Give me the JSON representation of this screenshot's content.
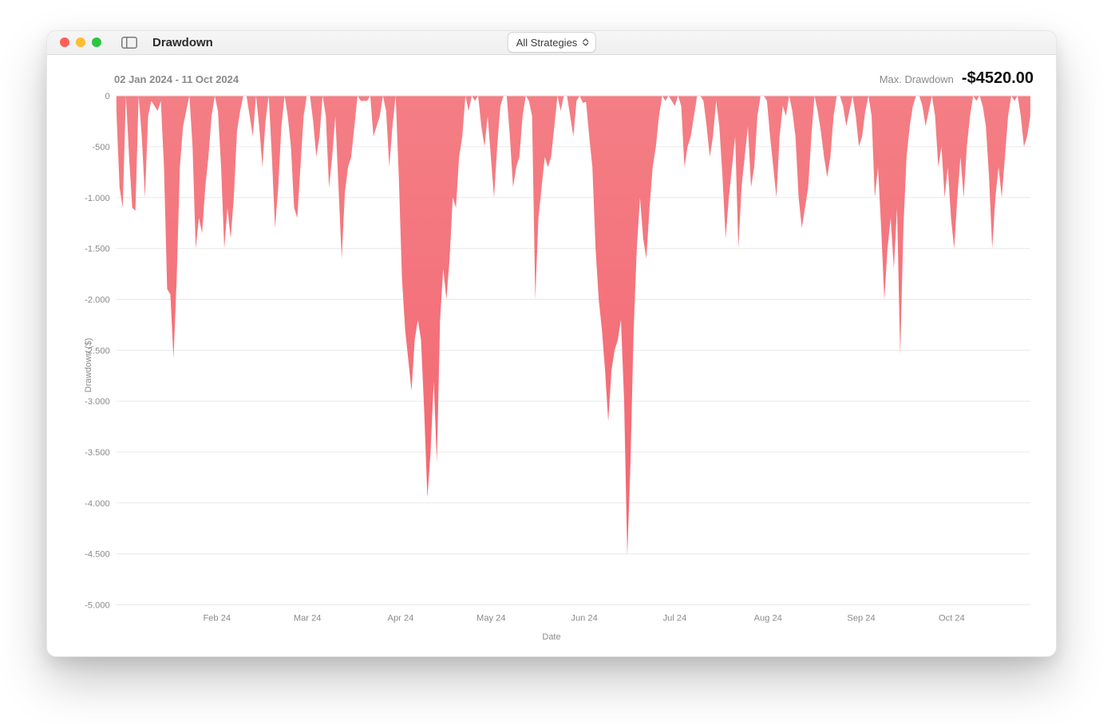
{
  "window": {
    "title": "Drawdown",
    "dropdown_label": "All Strategies",
    "traffic_colors": {
      "close": "#ff5f57",
      "min": "#febc2e",
      "max": "#28c840"
    }
  },
  "header": {
    "date_range": "02 Jan 2024 - 11 Oct 2024",
    "maxdd_label": "Max. Drawdown",
    "maxdd_value": "-$4520.00"
  },
  "chart": {
    "type": "area",
    "ylabel": "Drawdown ($)",
    "xlabel": "Date",
    "ylim": [
      -5000,
      0
    ],
    "ytick_step": 500,
    "ytick_labels": [
      "0",
      "-500",
      "-1.000",
      "-1.500",
      "-2.000",
      "-2.500",
      "-3.000",
      "-3.500",
      "-4.000",
      "-4.500",
      "-5.000"
    ],
    "x_ticks": [
      "Feb 24",
      "Mar 24",
      "Apr 24",
      "May 24",
      "Jun 24",
      "Jul 24",
      "Aug 24",
      "Sep 24",
      "Oct 24"
    ],
    "x_tick_positions_pct": [
      11.0,
      20.9,
      31.1,
      41.0,
      51.2,
      61.1,
      71.3,
      81.5,
      91.4
    ],
    "fill_color_top": "#f47e85",
    "fill_color_bottom": "#f36570",
    "grid_color": "#e9e9e9",
    "axis_text_color": "#8a8a8a",
    "axis_font_size": 11,
    "background_color": "#ffffff",
    "values": [
      -150,
      -900,
      -1100,
      0,
      -600,
      -1100,
      -1130,
      0,
      -400,
      -1000,
      -200,
      -50,
      -100,
      -150,
      -50,
      -700,
      -1900,
      -1950,
      -2580,
      -1800,
      -700,
      -300,
      -150,
      0,
      -500,
      -1500,
      -1200,
      -1350,
      -900,
      -600,
      -200,
      0,
      -150,
      -700,
      -1500,
      -1100,
      -1400,
      -1000,
      -350,
      -150,
      0,
      0,
      -200,
      -400,
      0,
      -300,
      -700,
      -250,
      0,
      -600,
      -1300,
      -900,
      -300,
      0,
      -200,
      -500,
      -1100,
      -1200,
      -700,
      -200,
      0,
      0,
      -250,
      -600,
      -400,
      0,
      -200,
      -900,
      -600,
      -200,
      -900,
      -1600,
      -950,
      -700,
      -600,
      -300,
      0,
      -50,
      -50,
      -50,
      0,
      -400,
      -300,
      -200,
      0,
      -150,
      -700,
      -300,
      0,
      -800,
      -1800,
      -2300,
      -2600,
      -2900,
      -2400,
      -2200,
      -2400,
      -3100,
      -3950,
      -3500,
      -2800,
      -3600,
      -2200,
      -1700,
      -2000,
      -1600,
      -1000,
      -1100,
      -600,
      -400,
      0,
      -150,
      0,
      -50,
      0,
      -300,
      -500,
      -200,
      -600,
      -1000,
      -500,
      -100,
      0,
      0,
      -400,
      -900,
      -700,
      -600,
      -200,
      0,
      -50,
      -200,
      -2000,
      -1200,
      -900,
      -600,
      -700,
      -600,
      -300,
      0,
      -150,
      0,
      0,
      -200,
      -400,
      -50,
      0,
      -70,
      -60,
      -400,
      -700,
      -1500,
      -2000,
      -2300,
      -2700,
      -3200,
      -2700,
      -2500,
      -2400,
      -2200,
      -3000,
      -4520,
      -3600,
      -2300,
      -1500,
      -1000,
      -1400,
      -1600,
      -1100,
      -700,
      -500,
      -200,
      0,
      -50,
      0,
      -50,
      -100,
      0,
      -100,
      -700,
      -500,
      -400,
      -200,
      0,
      0,
      -50,
      -300,
      -600,
      -400,
      -50,
      -300,
      -800,
      -1400,
      -1000,
      -700,
      -400,
      -1500,
      -900,
      -600,
      -300,
      -900,
      -700,
      -200,
      0,
      0,
      -50,
      -400,
      -700,
      -1000,
      -400,
      -100,
      -200,
      0,
      -150,
      -400,
      -1000,
      -1300,
      -1100,
      -900,
      -400,
      0,
      -150,
      -350,
      -600,
      -800,
      -600,
      -200,
      0,
      0,
      -100,
      -300,
      -150,
      0,
      -200,
      -500,
      -400,
      -150,
      0,
      -200,
      -1000,
      -700,
      -1300,
      -2000,
      -1500,
      -1200,
      -1700,
      -1100,
      -2550,
      -1300,
      -600,
      -300,
      -100,
      0,
      0,
      -100,
      -300,
      -150,
      0,
      -200,
      -700,
      -500,
      -1000,
      -700,
      -1200,
      -1500,
      -1000,
      -600,
      -1000,
      -500,
      -200,
      0,
      -50,
      0,
      -100,
      -300,
      -800,
      -1500,
      -1000,
      -700,
      -1000,
      -600,
      -200,
      0,
      -50,
      0,
      -200,
      -500,
      -400,
      -200
    ]
  }
}
